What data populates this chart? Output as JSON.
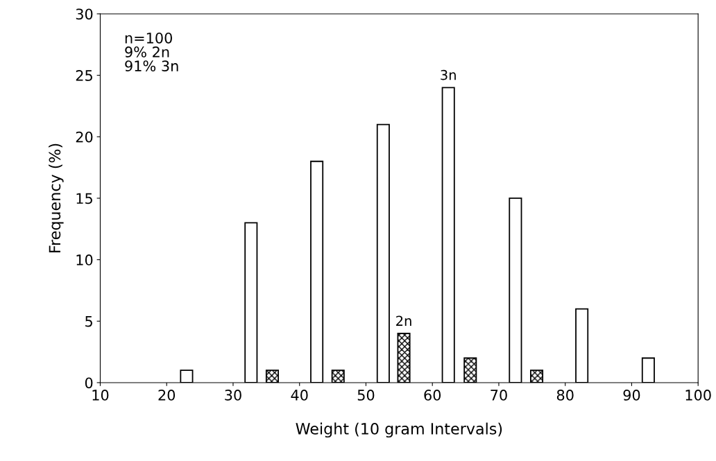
{
  "chart_data": {
    "type": "bar",
    "xlabel": "Weight (10 gram Intervals)",
    "ylabel": "Frequency (%)",
    "series": [
      {
        "name": "3n",
        "color": "#ffffff",
        "x": [
          23,
          32.7,
          42.6,
          52.6,
          62.4,
          72.5,
          82.5,
          92.5
        ],
        "values": [
          1,
          13,
          18,
          21,
          24,
          15,
          6,
          2
        ]
      },
      {
        "name": "2n",
        "color": "#000000",
        "x": [
          35.9,
          45.8,
          55.7,
          65.7,
          75.7
        ],
        "values": [
          1,
          1,
          4,
          2,
          1
        ]
      }
    ],
    "xlim": [
      10,
      100
    ],
    "xticks": [
      10,
      20,
      30,
      40,
      50,
      60,
      70,
      80,
      90,
      100
    ],
    "ylim": [
      0,
      30
    ],
    "yticks": [
      0,
      5,
      10,
      15,
      20,
      25,
      30
    ],
    "annotations": [
      "n=100\n9% 2n\n91% 3n"
    ],
    "grid": false,
    "legend": false
  }
}
